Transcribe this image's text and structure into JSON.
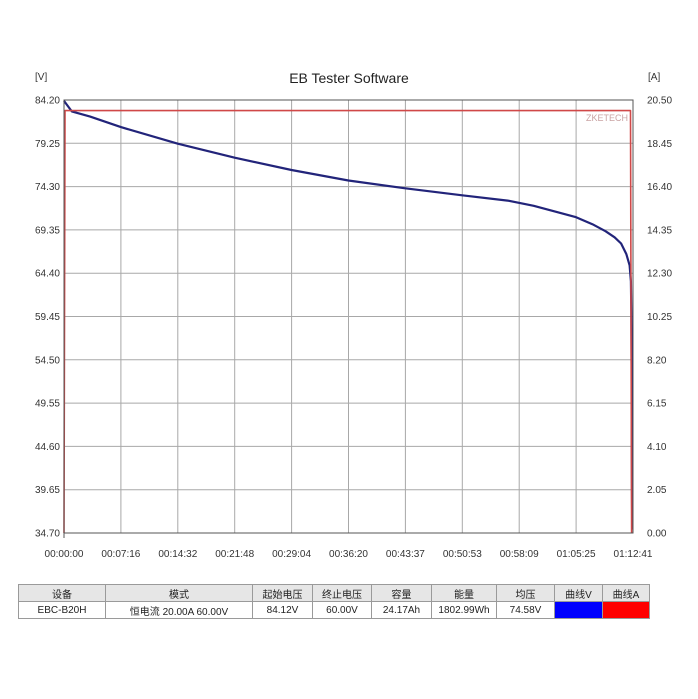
{
  "chart_data": {
    "type": "line",
    "title": "EB Tester Software",
    "brand": "ZKETECH",
    "y_left_unit": "[V]",
    "y_right_unit": "[A]",
    "ylim_left": [
      34.7,
      84.2
    ],
    "ylim_right": [
      0.0,
      20.5
    ],
    "yticks_left": [
      "84.20",
      "79.25",
      "74.30",
      "69.35",
      "64.40",
      "59.45",
      "54.50",
      "49.55",
      "44.60",
      "39.65",
      "34.70"
    ],
    "yticks_right": [
      "20.50",
      "18.45",
      "16.40",
      "14.35",
      "12.30",
      "10.25",
      "8.20",
      "6.15",
      "4.10",
      "2.05",
      "0.00"
    ],
    "xticks": [
      "00:00:00",
      "00:07:16",
      "00:14:32",
      "00:21:48",
      "00:29:04",
      "00:36:20",
      "00:43:37",
      "00:50:53",
      "00:58:09",
      "01:05:25",
      "01:12:41"
    ],
    "xlim_seconds": [
      0,
      4361
    ],
    "grid": true,
    "series": [
      {
        "axis": "left",
        "color": "#22247a",
        "x": [
          0,
          60,
          200,
          436,
          872,
          1308,
          1744,
          2180,
          2616,
          3052,
          3400,
          3600,
          3750,
          3925,
          4050,
          4150,
          4220,
          4270,
          4310,
          4335,
          4345,
          4348,
          4350,
          4352,
          4355
        ],
        "y": [
          84.1,
          82.9,
          82.3,
          81.1,
          79.2,
          77.6,
          76.2,
          75.0,
          74.1,
          73.3,
          72.7,
          72.1,
          71.5,
          70.8,
          70.0,
          69.2,
          68.5,
          67.8,
          66.6,
          65.3,
          63.5,
          60.0,
          54.0,
          44.0,
          35.1
        ]
      },
      {
        "axis": "right",
        "color": "#d04848",
        "x": [
          0,
          8,
          20,
          4330,
          4342,
          4350
        ],
        "y": [
          0.0,
          20.0,
          20.0,
          20.0,
          20.0,
          0.0
        ]
      }
    ]
  },
  "info_table": {
    "headers": [
      "设备",
      "模式",
      "起始电压",
      "终止电压",
      "容量",
      "能量",
      "均压",
      "曲线V",
      "曲线A"
    ],
    "values": [
      "EBC-B20H",
      "恒电流  20.00A  60.00V",
      "84.12V",
      "60.00V",
      "24.17Ah",
      "1802.99Wh",
      "74.58V",
      "",
      ""
    ],
    "curve_v_color": "#0000ff",
    "curve_a_color": "#ff0000"
  }
}
